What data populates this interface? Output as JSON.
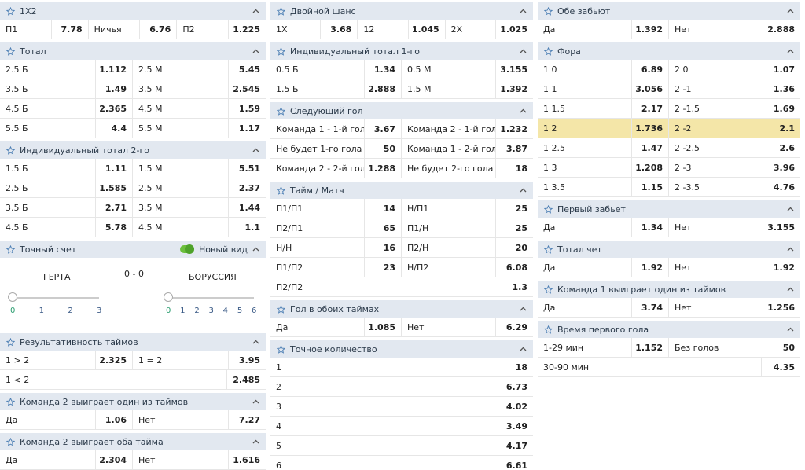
{
  "columns": [
    {
      "sections": [
        {
          "title": "1X2",
          "rows": [
            [
              [
                "П1",
                7.78
              ],
              [
                "Ничья",
                6.76
              ],
              [
                "П2",
                1.225
              ]
            ]
          ]
        },
        {
          "title": "Тотал",
          "rows": [
            [
              [
                "2.5 Б",
                1.112
              ],
              [
                "2.5 М",
                5.45
              ]
            ],
            [
              [
                "3.5 Б",
                1.49
              ],
              [
                "3.5 М",
                2.545
              ]
            ],
            [
              [
                "4.5 Б",
                2.365
              ],
              [
                "4.5 М",
                1.59
              ]
            ],
            [
              [
                "5.5 Б",
                4.4
              ],
              [
                "5.5 М",
                1.17
              ]
            ]
          ]
        },
        {
          "title": "Индивидуальный тотал 2-го",
          "rows": [
            [
              [
                "1.5 Б",
                1.11
              ],
              [
                "1.5 М",
                5.51
              ]
            ],
            [
              [
                "2.5 Б",
                1.585
              ],
              [
                "2.5 М",
                2.37
              ]
            ],
            [
              [
                "3.5 Б",
                2.71
              ],
              [
                "3.5 М",
                1.44
              ]
            ],
            [
              [
                "4.5 Б",
                5.78
              ],
              [
                "4.5 М",
                1.1
              ]
            ]
          ]
        },
        {
          "title": "Точный счет",
          "toggle_label": "Новый вид",
          "home": "ГЕРТА",
          "score": "0 - 0",
          "away": "БОРУССИЯ",
          "home_goals": [
            0,
            1,
            2,
            3
          ],
          "away_goals": [
            0,
            1,
            2,
            3,
            4,
            5,
            6
          ]
        },
        {
          "title": "Результативность таймов",
          "rows": [
            [
              [
                "1 > 2",
                2.325
              ],
              [
                "1 = 2",
                3.95
              ]
            ],
            [
              [
                "1 < 2",
                2.485
              ]
            ]
          ]
        },
        {
          "title": "Команда 2 выиграет один из таймов",
          "rows": [
            [
              [
                "Да",
                1.06
              ],
              [
                "Нет",
                7.27
              ]
            ]
          ]
        },
        {
          "title": "Команда 2 выиграет оба тайма",
          "rows": [
            [
              [
                "Да",
                2.304
              ],
              [
                "Нет",
                1.616
              ]
            ]
          ]
        }
      ]
    },
    {
      "sections": [
        {
          "title": "Двойной шанс",
          "rows": [
            [
              [
                "1X",
                3.68
              ],
              [
                "12",
                1.045
              ],
              [
                "2X",
                1.025
              ]
            ]
          ]
        },
        {
          "title": "Индивидуальный тотал 1-го",
          "rows": [
            [
              [
                "0.5 Б",
                1.34
              ],
              [
                "0.5 М",
                3.155
              ]
            ],
            [
              [
                "1.5 Б",
                2.888
              ],
              [
                "1.5 М",
                1.392
              ]
            ]
          ]
        },
        {
          "title": "Следующий гол",
          "rows": [
            [
              [
                "Команда 1 - 1-й гол",
                3.67
              ],
              [
                "Команда 2 - 1-й гол",
                1.232
              ]
            ],
            [
              [
                "Не будет 1-го гола",
                50
              ],
              [
                "Команда 1 - 2-й гол",
                3.87
              ]
            ],
            [
              [
                "Команда 2 - 2-й гол",
                1.288
              ],
              [
                "Не будет 2-го гола",
                18
              ]
            ]
          ]
        },
        {
          "title": "Тайм / Матч",
          "rows": [
            [
              [
                "П1/П1",
                14
              ],
              [
                "Н/П1",
                25
              ]
            ],
            [
              [
                "П2/П1",
                65
              ],
              [
                "П1/Н",
                25
              ]
            ],
            [
              [
                "Н/Н",
                16
              ],
              [
                "П2/Н",
                20
              ]
            ],
            [
              [
                "П1/П2",
                23
              ],
              [
                "Н/П2",
                6.08
              ]
            ],
            [
              [
                "П2/П2",
                1.3
              ]
            ]
          ]
        },
        {
          "title": "Гол в обоих таймах",
          "rows": [
            [
              [
                "Да",
                1.085
              ],
              [
                "Нет",
                6.29
              ]
            ]
          ]
        },
        {
          "title": "Точное количество",
          "rows": [
            [
              [
                "1",
                18
              ]
            ],
            [
              [
                "2",
                6.73
              ]
            ],
            [
              [
                "3",
                4.02
              ]
            ],
            [
              [
                "4",
                3.49
              ]
            ],
            [
              [
                "5",
                4.17
              ]
            ],
            [
              [
                "6",
                6.61
              ]
            ]
          ]
        }
      ]
    },
    {
      "sections": [
        {
          "title": "Обе забьют",
          "rows": [
            [
              [
                "Да",
                1.392
              ],
              [
                "Нет",
                2.888
              ]
            ]
          ]
        },
        {
          "title": "Фора",
          "selected_row": 3,
          "rows": [
            [
              [
                "1 0",
                6.89
              ],
              [
                "2 0",
                1.07
              ]
            ],
            [
              [
                "1 1",
                3.056
              ],
              [
                "2 -1",
                1.36
              ]
            ],
            [
              [
                "1 1.5",
                2.17
              ],
              [
                "2 -1.5",
                1.69
              ]
            ],
            [
              [
                "1 2",
                1.736
              ],
              [
                "2 -2",
                2.1
              ]
            ],
            [
              [
                "1 2.5",
                1.47
              ],
              [
                "2 -2.5",
                2.6
              ]
            ],
            [
              [
                "1 3",
                1.208
              ],
              [
                "2 -3",
                3.96
              ]
            ],
            [
              [
                "1 3.5",
                1.15
              ],
              [
                "2 -3.5",
                4.76
              ]
            ]
          ]
        },
        {
          "title": "Первый забьет",
          "rows": [
            [
              [
                "Да",
                1.34
              ],
              [
                "Нет",
                3.155
              ]
            ]
          ]
        },
        {
          "title": "Тотал чет",
          "rows": [
            [
              [
                "Да",
                1.92
              ],
              [
                "Нет",
                1.92
              ]
            ]
          ]
        },
        {
          "title": "Команда 1 выиграет один из таймов",
          "rows": [
            [
              [
                "Да",
                3.74
              ],
              [
                "Нет",
                1.256
              ]
            ]
          ]
        },
        {
          "title": "Время первого гола",
          "rows": [
            [
              [
                "1-29 мин",
                1.152
              ],
              [
                "Без голов",
                50
              ]
            ],
            [
              [
                "30-90 мин",
                4.35
              ]
            ]
          ]
        }
      ]
    }
  ]
}
